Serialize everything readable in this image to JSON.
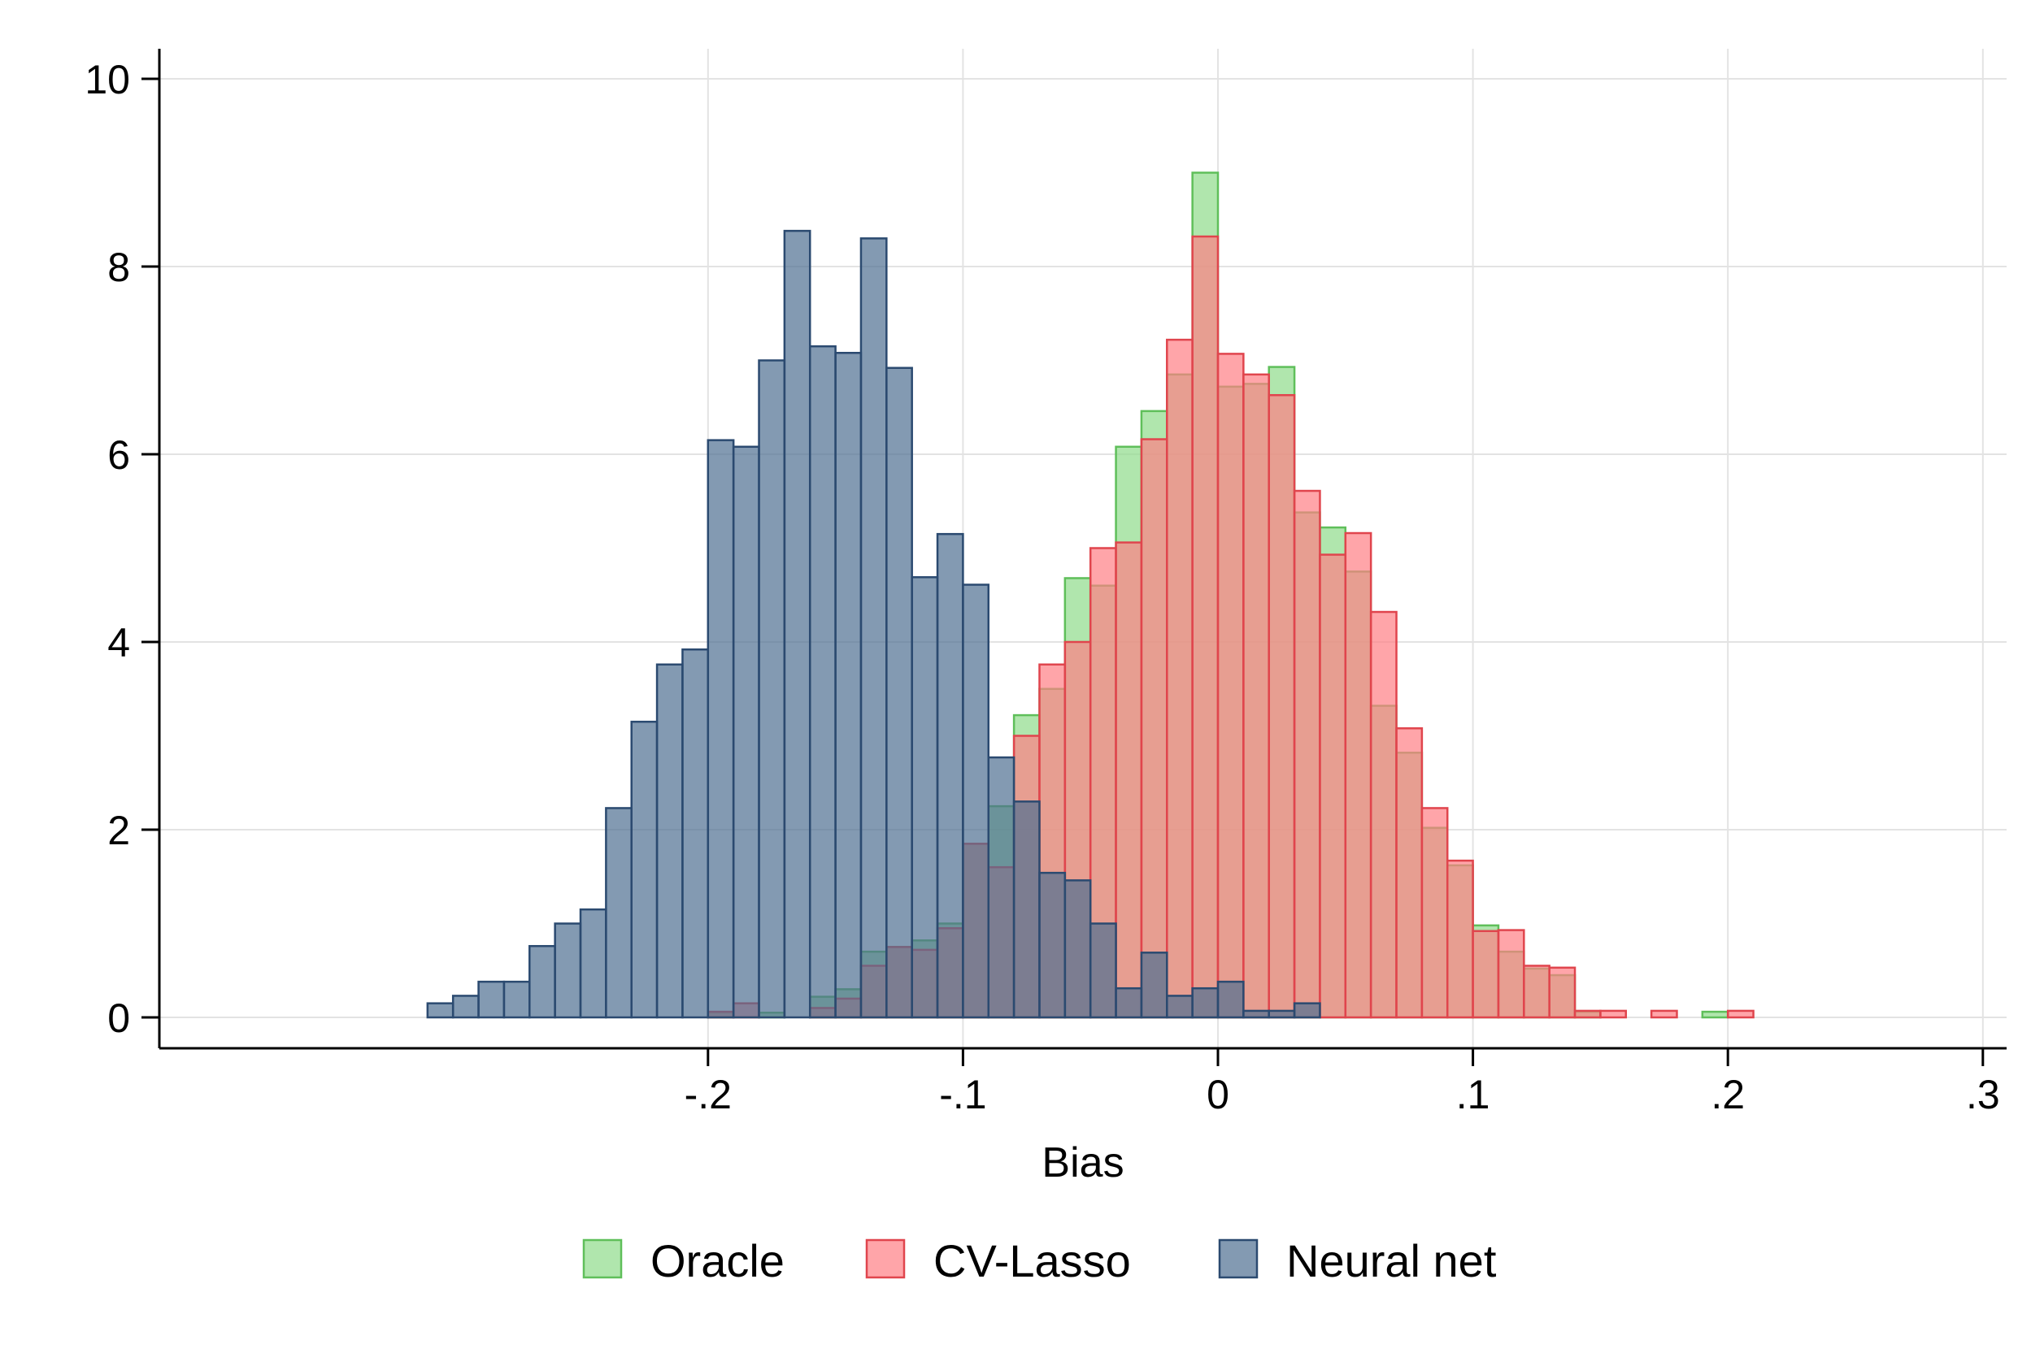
{
  "chart_data": {
    "type": "bar",
    "subtype": "overlaid-histogram",
    "xlabel": "Bias",
    "ylabel": "",
    "xlim": [
      -0.3,
      0.3
    ],
    "ylim": [
      0,
      10
    ],
    "xticks": [
      -0.2,
      -0.1,
      0,
      0.1,
      0.2,
      0.3
    ],
    "xtick_labels": [
      "-.2",
      "-.1",
      "0",
      ".1",
      ".2",
      ".3"
    ],
    "yticks": [
      0,
      2,
      4,
      6,
      8,
      10
    ],
    "ytick_labels": [
      "0",
      "2",
      "4",
      "6",
      "8",
      "10"
    ],
    "grid": true,
    "legend_position": "bottom",
    "bin_width": 0.01,
    "series": [
      {
        "name": "Oracle",
        "color": "#8fdc8a",
        "stroke": "#5fbf5a",
        "bins": [
          [
            -0.195,
            0.05
          ],
          [
            -0.175,
            0.05
          ],
          [
            -0.155,
            0.22
          ],
          [
            -0.145,
            0.3
          ],
          [
            -0.135,
            0.7
          ],
          [
            -0.125,
            0.75
          ],
          [
            -0.115,
            0.82
          ],
          [
            -0.105,
            1.0
          ],
          [
            -0.095,
            1.85
          ],
          [
            -0.085,
            2.25
          ],
          [
            -0.075,
            3.22
          ],
          [
            -0.065,
            3.5
          ],
          [
            -0.055,
            4.68
          ],
          [
            -0.045,
            4.6
          ],
          [
            -0.035,
            6.08
          ],
          [
            -0.025,
            6.46
          ],
          [
            -0.015,
            6.85
          ],
          [
            -0.005,
            9.0
          ],
          [
            0.005,
            6.72
          ],
          [
            0.015,
            6.75
          ],
          [
            0.025,
            6.93
          ],
          [
            0.035,
            5.38
          ],
          [
            0.045,
            5.22
          ],
          [
            0.055,
            4.75
          ],
          [
            0.065,
            3.32
          ],
          [
            0.075,
            2.82
          ],
          [
            0.085,
            2.02
          ],
          [
            0.095,
            1.62
          ],
          [
            0.105,
            0.98
          ],
          [
            0.115,
            0.7
          ],
          [
            0.125,
            0.52
          ],
          [
            0.135,
            0.45
          ],
          [
            0.145,
            0.06
          ],
          [
            0.195,
            0.06
          ]
        ]
      },
      {
        "name": "CV-Lasso",
        "color": "#ff7f85",
        "stroke": "#e0454d",
        "bins": [
          [
            -0.195,
            0.06
          ],
          [
            -0.185,
            0.15
          ],
          [
            -0.155,
            0.1
          ],
          [
            -0.145,
            0.2
          ],
          [
            -0.135,
            0.55
          ],
          [
            -0.125,
            0.75
          ],
          [
            -0.115,
            0.72
          ],
          [
            -0.105,
            0.95
          ],
          [
            -0.095,
            1.85
          ],
          [
            -0.085,
            1.6
          ],
          [
            -0.075,
            3.0
          ],
          [
            -0.065,
            3.76
          ],
          [
            -0.055,
            4.0
          ],
          [
            -0.045,
            5.0
          ],
          [
            -0.035,
            5.06
          ],
          [
            -0.025,
            6.16
          ],
          [
            -0.015,
            7.22
          ],
          [
            -0.005,
            8.32
          ],
          [
            0.005,
            7.07
          ],
          [
            0.015,
            6.85
          ],
          [
            0.025,
            6.63
          ],
          [
            0.035,
            5.61
          ],
          [
            0.045,
            4.93
          ],
          [
            0.055,
            5.16
          ],
          [
            0.065,
            4.32
          ],
          [
            0.075,
            3.08
          ],
          [
            0.085,
            2.23
          ],
          [
            0.095,
            1.67
          ],
          [
            0.105,
            0.92
          ],
          [
            0.115,
            0.93
          ],
          [
            0.125,
            0.55
          ],
          [
            0.135,
            0.53
          ],
          [
            0.145,
            0.07
          ],
          [
            0.155,
            0.07
          ],
          [
            0.175,
            0.07
          ],
          [
            0.205,
            0.07
          ]
        ]
      },
      {
        "name": "Neural net",
        "color": "#4f6f92",
        "stroke": "#2b4a70",
        "bins": [
          [
            -0.305,
            0.15
          ],
          [
            -0.295,
            0.23
          ],
          [
            -0.285,
            0.38
          ],
          [
            -0.275,
            0.38
          ],
          [
            -0.265,
            0.76
          ],
          [
            -0.255,
            1.0
          ],
          [
            -0.245,
            1.15
          ],
          [
            -0.235,
            2.23
          ],
          [
            -0.225,
            3.15
          ],
          [
            -0.215,
            3.76
          ],
          [
            -0.205,
            3.92
          ],
          [
            -0.195,
            6.15
          ],
          [
            -0.185,
            6.08
          ],
          [
            -0.175,
            7.0
          ],
          [
            -0.165,
            8.38
          ],
          [
            -0.155,
            7.15
          ],
          [
            -0.145,
            7.08
          ],
          [
            -0.135,
            8.3
          ],
          [
            -0.125,
            6.92
          ],
          [
            -0.115,
            4.69
          ],
          [
            -0.105,
            5.15
          ],
          [
            -0.095,
            4.61
          ],
          [
            -0.085,
            2.77
          ],
          [
            -0.075,
            2.3
          ],
          [
            -0.065,
            1.54
          ],
          [
            -0.055,
            1.46
          ],
          [
            -0.045,
            1.0
          ],
          [
            -0.035,
            0.31
          ],
          [
            -0.025,
            0.69
          ],
          [
            -0.015,
            0.23
          ],
          [
            -0.005,
            0.31
          ],
          [
            0.005,
            0.38
          ],
          [
            0.015,
            0.07
          ],
          [
            0.025,
            0.07
          ],
          [
            0.035,
            0.15
          ]
        ]
      }
    ]
  }
}
